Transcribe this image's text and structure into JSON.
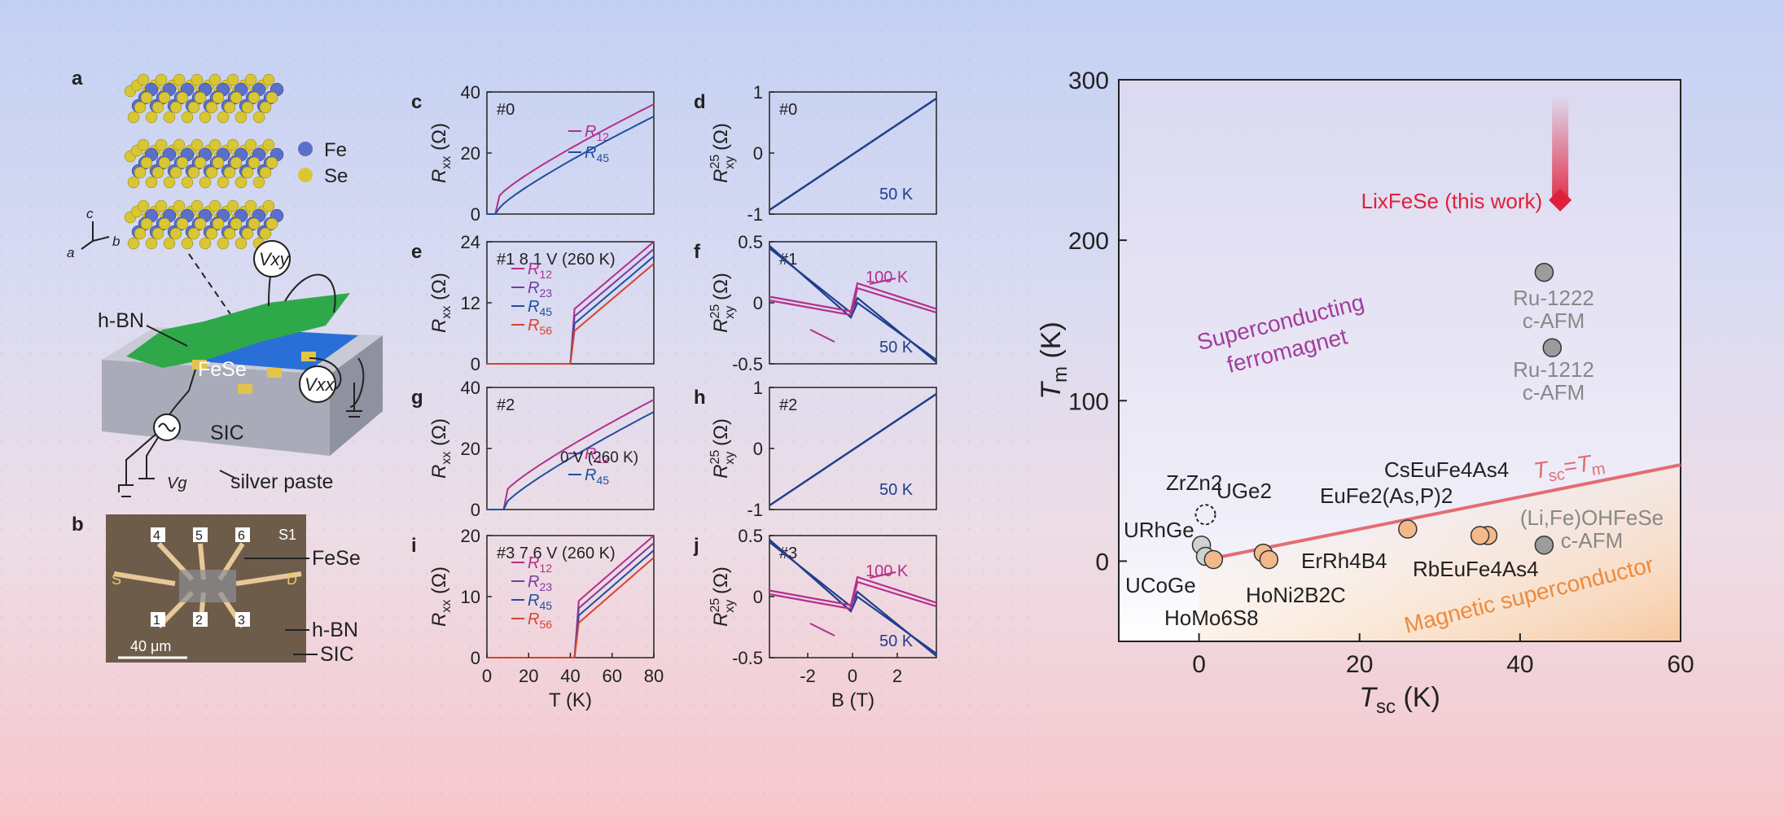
{
  "panels": {
    "a": {
      "letter": "a",
      "legend_fe": "Fe",
      "legend_se": "Se",
      "axis_c": "c",
      "axis_a": "a",
      "axis_b": "b",
      "label_hbn": "h-BN",
      "label_fese": "FeSe",
      "label_sic": "SIC",
      "label_silver": "silver paste",
      "meter_vxy": "Vxy",
      "meter_vxx": "Vxx",
      "gate_label": "Vg",
      "colors": {
        "fe": "#5a6fc8",
        "se": "#d8c634",
        "hbn": "#2fa84a",
        "fese": "#2a6fd8",
        "sic": "#a9acb8"
      }
    },
    "b": {
      "letter": "b",
      "pads": [
        "4",
        "5",
        "6",
        "1",
        "2",
        "3"
      ],
      "sample": "S1",
      "source": "S",
      "drain": "D",
      "label_fese": "FeSe",
      "label_hbn": "h-BN",
      "label_sic": "SIC",
      "scale_bar": "40 μm"
    },
    "c": {
      "letter": "c",
      "tag": "#0",
      "legend": [
        "R12",
        "R45"
      ]
    },
    "d": {
      "letter": "d",
      "tag": "#0",
      "temp": "50 K"
    },
    "e": {
      "letter": "e",
      "tag": "#1 8.1 V (260 K)",
      "legend": [
        "R12",
        "R23",
        "R45",
        "R56"
      ]
    },
    "f": {
      "letter": "f",
      "tag": "#1",
      "temp_high": "100 K",
      "temp_low": "50 K"
    },
    "g": {
      "letter": "g",
      "tag": "#2",
      "gate": "0 V (260 K)",
      "legend": [
        "R12",
        "R45"
      ]
    },
    "h": {
      "letter": "h",
      "tag": "#2",
      "temp": "50 K"
    },
    "i": {
      "letter": "i",
      "tag": "#3 7.6 V (260 K)",
      "legend": [
        "R12",
        "R23",
        "R45",
        "R56"
      ]
    },
    "j": {
      "letter": "j",
      "tag": "#3",
      "temp_high": "100 K",
      "temp_low": "50 K"
    }
  },
  "axes_small": {
    "rxx_label": "Rxx (Ω)",
    "rxy_label": "R25xy (Ω)",
    "x_left_label": "T (K)",
    "x_right_label": "B (T)",
    "ticks": {
      "c_y": [
        "0",
        "20",
        "40"
      ],
      "e_y": [
        "0",
        "12",
        "24"
      ],
      "g_y": [
        "0",
        "20",
        "40"
      ],
      "i_y": [
        "0",
        "10",
        "20"
      ],
      "d_y": [
        "-1",
        "0",
        "1"
      ],
      "f_y": [
        "-0.5",
        "0",
        "0.5"
      ],
      "h_y": [
        "-1",
        "0",
        "1"
      ],
      "j_y": [
        "-0.5",
        "0",
        "0.5"
      ],
      "t_x": [
        "0",
        "20",
        "40",
        "60",
        "80"
      ],
      "b_x": [
        "-2",
        "0",
        "2"
      ]
    }
  },
  "chart_data": {
    "type": "scatter",
    "xlabel": "Tsc (K)",
    "ylabel": "Tm (K)",
    "xlim": [
      -10,
      60
    ],
    "ylim": [
      -50,
      300
    ],
    "xticks": [
      "0",
      "20",
      "40",
      "60"
    ],
    "yticks": [
      "0",
      "100",
      "200",
      "300"
    ],
    "line_label": "Tsc=Tm",
    "region_top": "Superconducting ferromagnet",
    "region_bottom": "Magnetic superconductor",
    "highlight": {
      "name": "LixFeSe (this work)",
      "x": 45,
      "y": 225
    },
    "points": [
      {
        "name": "ZrZn2",
        "x": 0.5,
        "y": 29,
        "group": "ferromagnet"
      },
      {
        "name": "UGe2",
        "x": 0.8,
        "y": 29,
        "group": "ferromagnet"
      },
      {
        "name": "URhGe",
        "x": 0.3,
        "y": 10,
        "group": "ferromagnet"
      },
      {
        "name": "UCoGe",
        "x": 0.8,
        "y": 3,
        "group": "ferromagnet"
      },
      {
        "name": "HoMo6S8",
        "x": 1.8,
        "y": 1,
        "group": "magnetic-sc"
      },
      {
        "name": "HoNi2B2C",
        "x": 8,
        "y": 5,
        "group": "magnetic-sc"
      },
      {
        "name": "ErRh4B4",
        "x": 8.7,
        "y": 1,
        "group": "magnetic-sc"
      },
      {
        "name": "EuFe2(As,P)2",
        "x": 26,
        "y": 20,
        "group": "magnetic-sc"
      },
      {
        "name": "CsEuFe4As4",
        "x": 36,
        "y": 16,
        "group": "magnetic-sc"
      },
      {
        "name": "RbEuFe4As4",
        "x": 35,
        "y": 16,
        "group": "magnetic-sc"
      },
      {
        "name": "Ru-1222",
        "x": 43,
        "y": 180,
        "note": "c-AFM",
        "group": "afm"
      },
      {
        "name": "Ru-1212",
        "x": 44,
        "y": 133,
        "note": "c-AFM",
        "group": "afm"
      },
      {
        "name": "(Li,Fe)OHFeSe",
        "x": 43,
        "y": 10,
        "note": "c-AFM",
        "group": "afm"
      }
    ],
    "colors": {
      "ferromagnet": "#cfd3cf",
      "magnetic-sc": "#f2b98c",
      "afm": "#9c9c9c",
      "highlight": "#e0203a",
      "line": "#e46c74",
      "top_text": "#a23d9c",
      "bottom_text": "#ee8a3c"
    }
  }
}
